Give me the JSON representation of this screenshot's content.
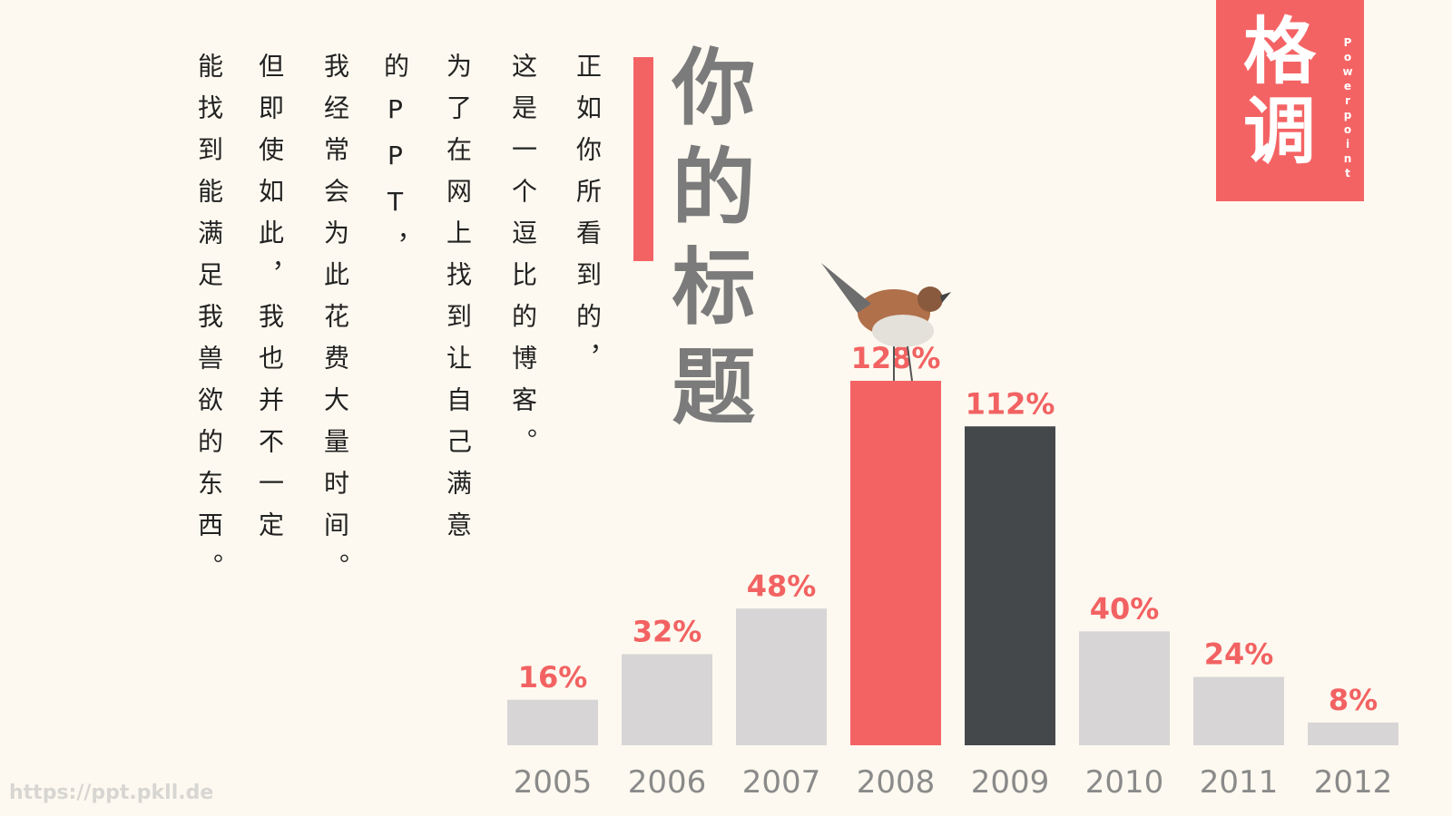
{
  "logo": {
    "title": "格调",
    "subtitle": "Powerpoint"
  },
  "title": "你的标题",
  "text": {
    "columns": [
      "正如你所看到的，",
      "这是一个逗比的博客。",
      "为了在网上找到让自己满意",
      "的PPT，",
      "我经常会为此花费大量时间。",
      "但即使如此，我也并不一定",
      "能找到能满足我兽欲的东西。"
    ]
  },
  "chart_data": {
    "type": "bar",
    "categories": [
      "2005",
      "2006",
      "2007",
      "2008",
      "2009",
      "2010",
      "2011",
      "2012"
    ],
    "values": [
      16,
      32,
      48,
      128,
      112,
      40,
      24,
      8
    ],
    "value_labels": [
      "16%",
      "32%",
      "48%",
      "128%",
      "112%",
      "40%",
      "24%",
      "8%"
    ],
    "colors": [
      "#d7d5d6",
      "#d7d5d6",
      "#d7d5d6",
      "#f46364",
      "#45484b",
      "#d7d5d6",
      "#d7d5d6",
      "#d7d5d6"
    ]
  },
  "watermark": "https://ppt.pkll.de"
}
